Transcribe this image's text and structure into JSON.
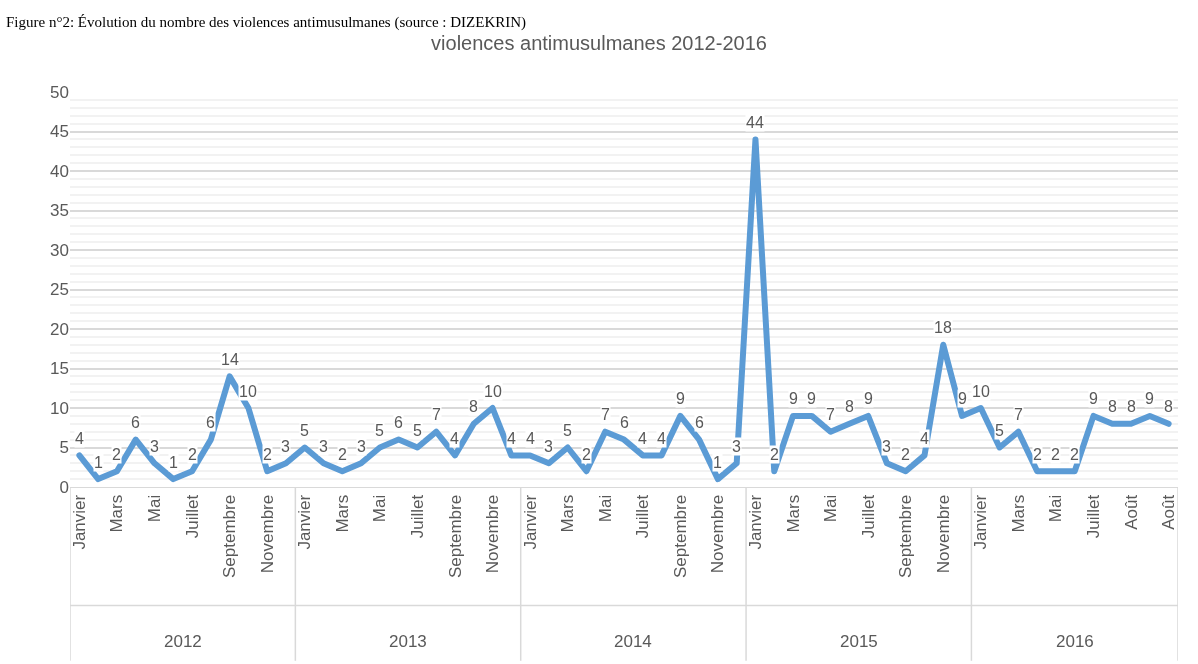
{
  "chart_data": {
    "type": "line",
    "title": "violences antimusulmanes 2012-2016",
    "categories": [
      "Janvier",
      null,
      "Mars",
      null,
      "Mai",
      null,
      "Juillet",
      null,
      "Septembre",
      null,
      "Novembre",
      null,
      "Janvier",
      null,
      "Mars",
      null,
      "Mai",
      null,
      "Juillet",
      null,
      "Septembre",
      null,
      "Novembre",
      null,
      "Janvier",
      null,
      "Mars",
      null,
      "Mai",
      null,
      "Juillet",
      null,
      "Septembre",
      null,
      "Novembre",
      null,
      "Janvier",
      null,
      "Mars",
      null,
      "Mai",
      null,
      "Juillet",
      null,
      "Septembre",
      null,
      "Novembre",
      null,
      "Janvier",
      null,
      "Mars",
      null,
      "Mai",
      null,
      "Juillet",
      null,
      "Août",
      null,
      "Août"
    ],
    "series": [
      {
        "color": "#5b9bd5",
        "values": [
          4,
          1,
          2,
          6,
          3,
          1,
          2,
          6,
          14,
          10,
          2,
          3,
          5,
          3,
          2,
          3,
          5,
          6,
          5,
          7,
          4,
          8,
          10,
          4,
          4,
          3,
          5,
          2,
          7,
          6,
          4,
          4,
          9,
          6,
          1,
          3,
          44,
          2,
          9,
          9,
          7,
          8,
          9,
          3,
          2,
          4,
          18,
          9,
          10,
          5,
          7,
          2,
          2,
          2,
          9,
          8,
          8,
          9,
          8
        ]
      }
    ],
    "ylim": [
      0,
      50
    ],
    "yticks": [
      0,
      5,
      10,
      15,
      20,
      25,
      30,
      35,
      40,
      45,
      50
    ],
    "grid": "y",
    "marker": "none",
    "line_style": "solid",
    "data_labels": true,
    "annotations": [
      "Figure n°2: Évolution du nombre des violences antimusulmanes (source : DIZEKRIN)",
      "2012",
      "2013",
      "2014",
      "2015",
      "2016"
    ]
  }
}
